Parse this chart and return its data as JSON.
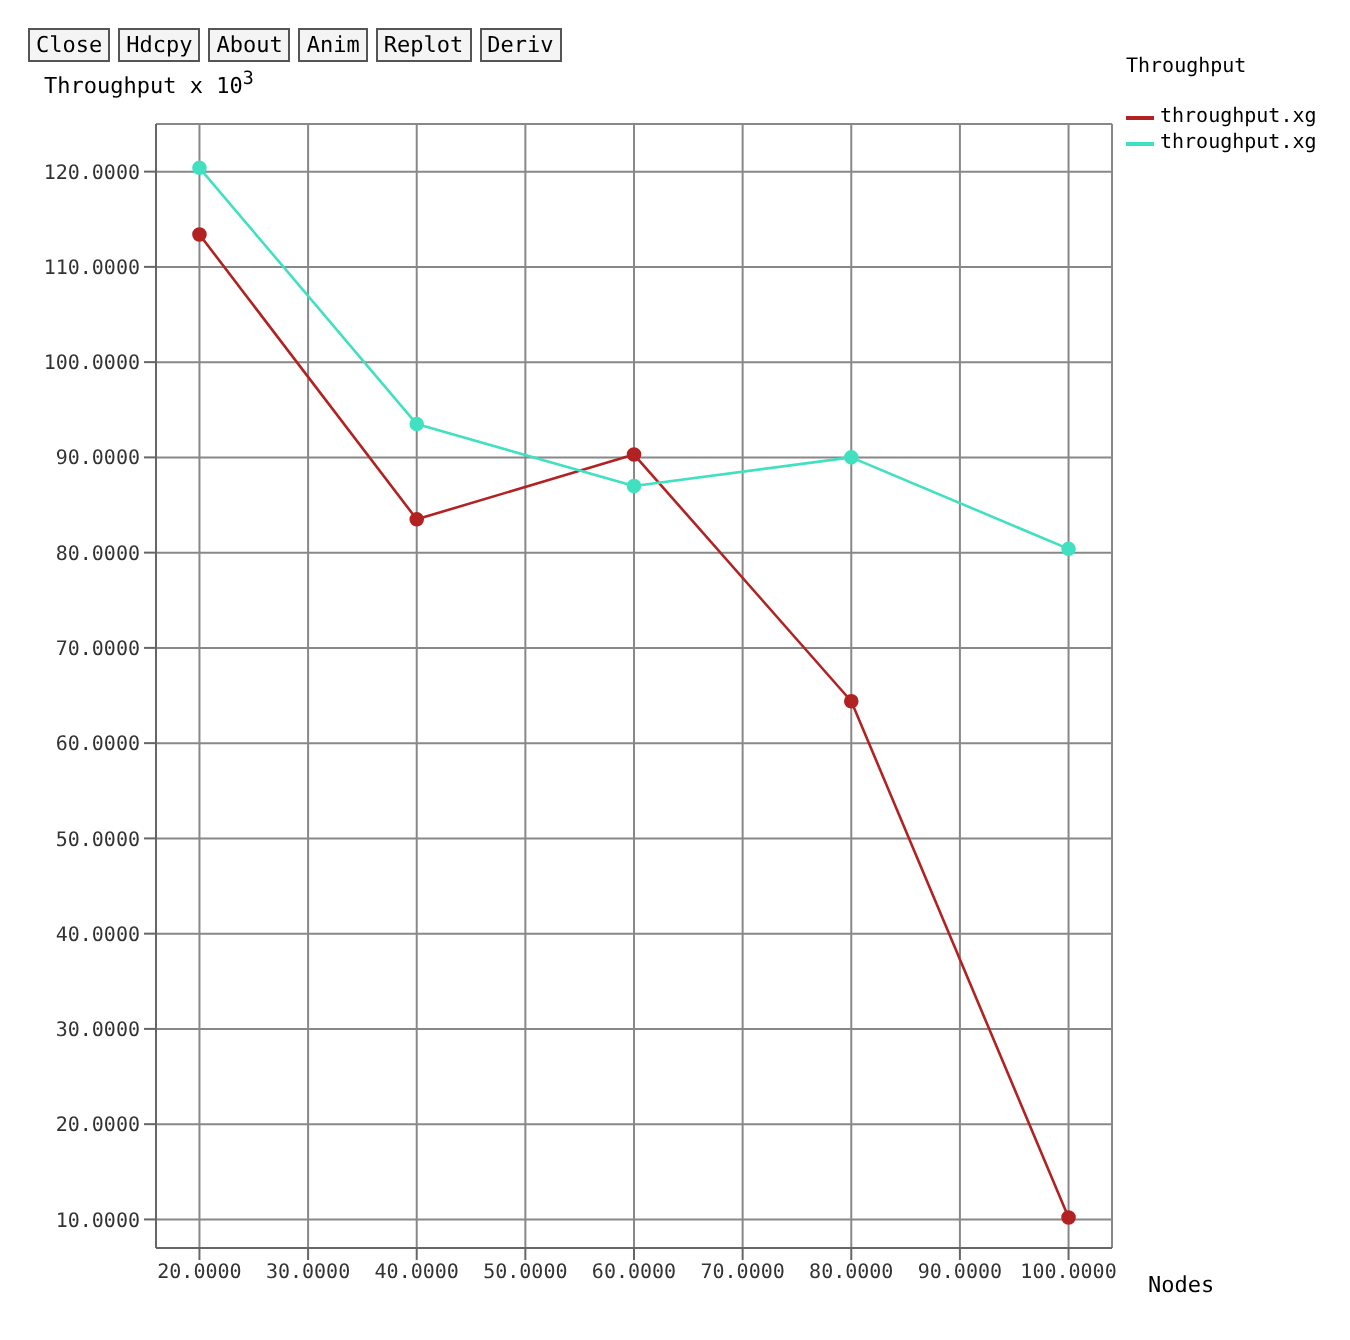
{
  "chart_data": {
    "type": "line",
    "xlabel": "Nodes",
    "ylabel": "Throughput x 10$^{3}$",
    "legend_title": "Throughput",
    "annotations": [
      "Close",
      "Hdcpy",
      "About",
      "Anim",
      "Replot",
      "Deriv"
    ],
    "x": [
      20,
      40,
      60,
      80,
      100
    ],
    "series": [
      {
        "name": "throughput.xg",
        "color": "#b22222",
        "values": [
          113.4,
          83.5,
          90.3,
          64.4,
          10.2
        ]
      },
      {
        "name": "throughput.xg",
        "color": "#40e0c0",
        "values": [
          120.4,
          93.5,
          87,
          90,
          80.4
        ]
      }
    ],
    "xlim": [
      16,
      104
    ],
    "ylim": [
      7,
      125
    ],
    "xticks": [
      {
        "value": 20,
        "label": "20.0000"
      },
      {
        "value": 30,
        "label": "30.0000"
      },
      {
        "value": 40,
        "label": "40.0000"
      },
      {
        "value": 50,
        "label": "50.0000"
      },
      {
        "value": 60,
        "label": "60.0000"
      },
      {
        "value": 70,
        "label": "70.0000"
      },
      {
        "value": 80,
        "label": "80.0000"
      },
      {
        "value": 90,
        "label": "90.0000"
      },
      {
        "value": 100,
        "label": "100.0000"
      }
    ],
    "yticks": [
      {
        "value": 10,
        "label": "10.0000"
      },
      {
        "value": 20,
        "label": "20.0000"
      },
      {
        "value": 30,
        "label": "30.0000"
      },
      {
        "value": 40,
        "label": "40.0000"
      },
      {
        "value": 50,
        "label": "50.0000"
      },
      {
        "value": 60,
        "label": "60.0000"
      },
      {
        "value": 70,
        "label": "70.0000"
      },
      {
        "value": 80,
        "label": "80.0000"
      },
      {
        "value": 90,
        "label": "90.0000"
      },
      {
        "value": 100,
        "label": "100.0000"
      },
      {
        "value": 110,
        "label": "110.0000"
      },
      {
        "value": 120,
        "label": "120.0000"
      }
    ],
    "grid": true,
    "legend": "top right",
    "marker": "circle",
    "line_style": "solid"
  }
}
